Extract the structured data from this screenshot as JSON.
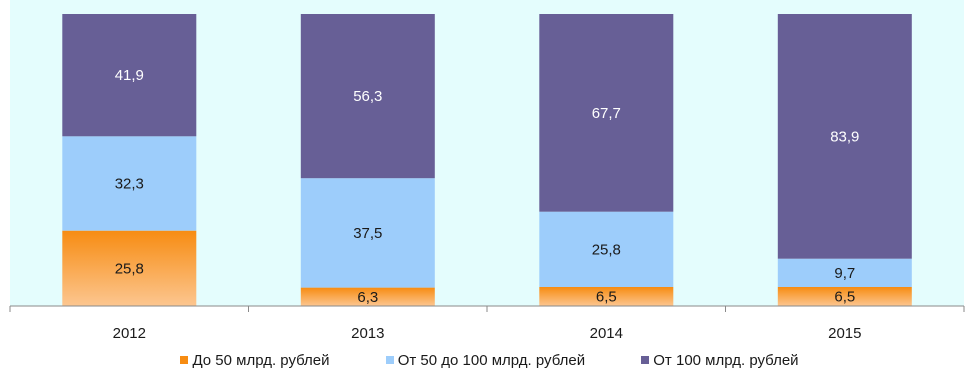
{
  "chart_data": {
    "type": "bar",
    "stacked": true,
    "normalized_percent": true,
    "title": "",
    "xlabel": "",
    "ylabel": "",
    "categories": [
      "2012",
      "2013",
      "2014",
      "2015"
    ],
    "series": [
      {
        "name": "До 50 млрд. рублей",
        "values": [
          25.8,
          6.3,
          6.5,
          6.5
        ],
        "labels": [
          "25,8",
          "6,3",
          "6,5",
          "6,5"
        ],
        "color": "#f7931e"
      },
      {
        "name": "От 50 до 100 млрд. рублей",
        "values": [
          32.3,
          37.5,
          25.8,
          9.7
        ],
        "labels": [
          "32,3",
          "37,5",
          "25,8",
          "9,7"
        ],
        "color": "#9dcdfb"
      },
      {
        "name": "От 100 млрд. рублей",
        "values": [
          41.9,
          56.3,
          67.7,
          83.9
        ],
        "labels": [
          "41,9",
          "56,3",
          "67,7",
          "83,9"
        ],
        "color": "#675f96"
      }
    ],
    "ylim": [
      0,
      100
    ],
    "grid": false,
    "legend": "bottom",
    "plot_background": "#e4fdfd"
  }
}
